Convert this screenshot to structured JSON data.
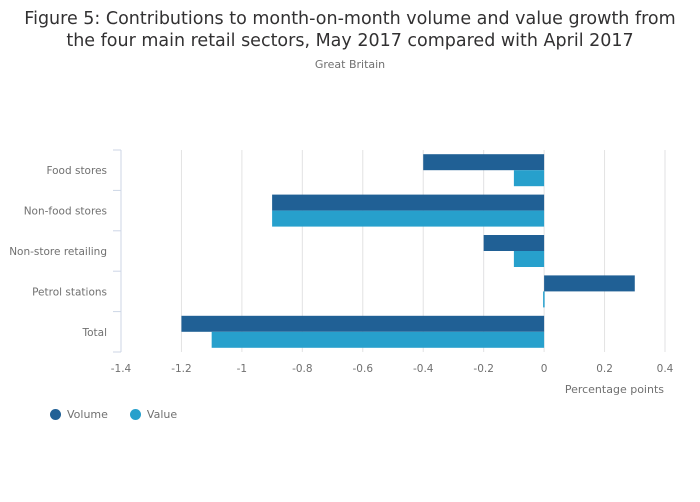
{
  "chart_data": {
    "type": "bar",
    "orientation": "horizontal",
    "title": "Figure 5: Contributions to month-on-month volume and value growth from the four main retail sectors, May 2017 compared with April 2017",
    "title_lines": [
      "Figure 5: Contributions to month-on-month volume and value growth from",
      "the four main retail sectors, May 2017 compared with April 2017"
    ],
    "subtitle": "Great Britain",
    "categories": [
      "Food stores",
      "Non-food stores",
      "Non-store retailing",
      "Petrol stations",
      "Total"
    ],
    "series": [
      {
        "name": "Volume",
        "color": "#206095",
        "values": [
          -0.4,
          -0.9,
          -0.2,
          0.3,
          -1.2
        ]
      },
      {
        "name": "Value",
        "color": "#27a0cc",
        "values": [
          -0.1,
          -0.9,
          -0.1,
          0.0,
          -1.1
        ]
      }
    ],
    "xlabel": "Percentage points",
    "ylabel": "",
    "xlim": [
      -1.4,
      0.4
    ],
    "xticks": [
      -1.4,
      -1.2,
      -1,
      -0.8,
      -0.6,
      -0.4,
      -0.2,
      0,
      0.2,
      0.4
    ],
    "xtick_labels": [
      "-1.4",
      "-1.2",
      "-1",
      "-0.8",
      "-0.6",
      "-0.4",
      "-0.2",
      "0",
      "0.2",
      "0.4"
    ],
    "grid": true,
    "legend_position": "bottom-left"
  }
}
